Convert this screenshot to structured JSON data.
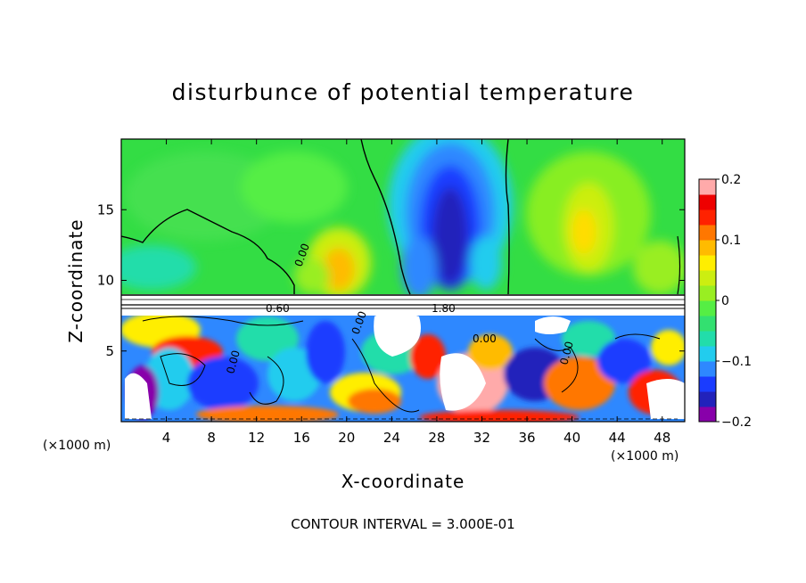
{
  "chart_data": {
    "type": "heatmap",
    "title": "disturbunce of potential temperature",
    "xlabel": "X-coordinate",
    "ylabel": "Z-coordinate",
    "x_unit": "(×1000 m)",
    "x_unit_right": "(×1000 m)",
    "xlim": [
      0,
      50
    ],
    "ylim": [
      0,
      20
    ],
    "x_ticks": [
      4,
      8,
      12,
      16,
      20,
      24,
      28,
      32,
      36,
      40,
      44,
      48
    ],
    "x_tick_labels": [
      "4",
      "8",
      "12",
      "16",
      "20",
      "24",
      "28",
      "32",
      "36",
      "40",
      "44",
      "48"
    ],
    "y_ticks": [
      5,
      10,
      15
    ],
    "y_tick_labels": [
      "5",
      "10",
      "15"
    ],
    "colorbar": {
      "range": [
        -0.2,
        0.2
      ],
      "ticks": [
        -0.2,
        -0.1,
        0,
        0.1,
        0.2
      ],
      "tick_labels": [
        "−0.2",
        "−0.1",
        "0",
        "0.1",
        "0.2"
      ],
      "colors": [
        "#8800aa",
        "#2222bb",
        "#1a3cff",
        "#2e88ff",
        "#22ccee",
        "#22ddaa",
        "#33e070",
        "#55ee44",
        "#99ee22",
        "#ccee11",
        "#ffee00",
        "#ffbb00",
        "#ff7700",
        "#ff2200",
        "#ee0000",
        "#ffaaaa"
      ]
    },
    "contour_labels": [
      "0.00",
      "0.60",
      "0.00",
      "1.80",
      "0.00",
      "0.00",
      "0.00"
    ],
    "note": "CONTOUR INTERVAL = 3.000E-01"
  }
}
